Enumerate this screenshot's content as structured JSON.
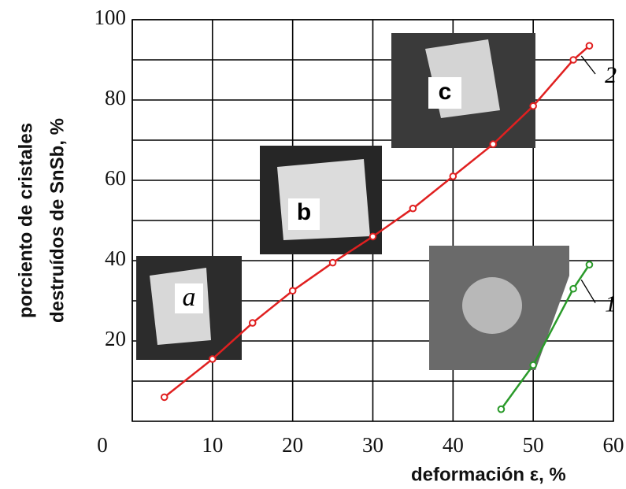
{
  "chart_data": {
    "type": "line",
    "xlabel": "deformación ε, %",
    "ylabel": [
      "porciento de cristales",
      "destruídos de SnSb, %"
    ],
    "xlim": [
      0,
      60
    ],
    "xticks": [
      0,
      10,
      20,
      30,
      40,
      50,
      60
    ],
    "ylim": [
      0,
      100
    ],
    "yticks": [
      20,
      40,
      60,
      80,
      100
    ],
    "grid": true,
    "series": [
      {
        "name": "2",
        "color": "#e02020",
        "x": [
          4,
          10,
          15,
          20,
          25,
          30,
          35,
          40,
          45,
          50,
          55,
          57
        ],
        "values": [
          6,
          15.5,
          24.5,
          32.5,
          39.5,
          46,
          53,
          61,
          69,
          78.5,
          90,
          93.5
        ]
      },
      {
        "name": "1",
        "color": "#2a9a2a",
        "x": [
          46,
          50,
          55,
          57
        ],
        "values": [
          3,
          14,
          33,
          39
        ]
      }
    ],
    "annotations": [
      "a",
      "b",
      "c"
    ]
  }
}
